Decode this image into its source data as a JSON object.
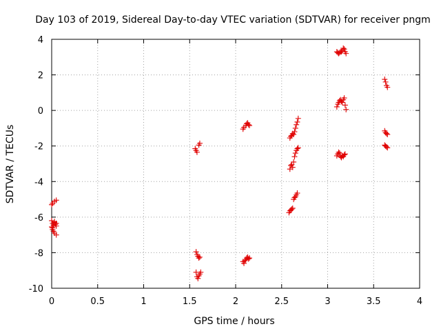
{
  "chart_data": {
    "type": "scatter",
    "title": "Day 103 of 2019, Sidereal Day-to-day VTEC variation (SDTVAR) for receiver pngm",
    "xlabel": "GPS time / hours",
    "ylabel": "SDTVAR / TECUs",
    "xlim": [
      0,
      4
    ],
    "ylim": [
      -10,
      4
    ],
    "grid": true,
    "x_ticks": [
      "0",
      "0.5",
      "1",
      "1.5",
      "2",
      "2.5",
      "3",
      "3.5",
      "4"
    ],
    "y_ticks": [
      "-10",
      "-8",
      "-6",
      "-4",
      "-2",
      "0",
      "2",
      "4"
    ],
    "marker": "plus",
    "marker_color": "#e00000",
    "series": [
      {
        "name": "SDTVAR",
        "points": [
          [
            0.0,
            -5.3
          ],
          [
            0.01,
            -5.22
          ],
          [
            0.03,
            -5.12
          ],
          [
            0.05,
            -5.05
          ],
          [
            0.0,
            -6.2
          ],
          [
            0.01,
            -6.35
          ],
          [
            0.02,
            -6.45
          ],
          [
            0.03,
            -6.3
          ],
          [
            0.04,
            -6.4
          ],
          [
            0.05,
            -6.5
          ],
          [
            0.0,
            -6.55
          ],
          [
            0.01,
            -6.7
          ],
          [
            0.02,
            -6.8
          ],
          [
            0.03,
            -6.9
          ],
          [
            0.05,
            -7.0
          ],
          [
            0.01,
            -6.6
          ],
          [
            0.03,
            -6.25
          ],
          [
            0.05,
            -6.35
          ],
          [
            1.56,
            -2.15
          ],
          [
            1.57,
            -2.25
          ],
          [
            1.58,
            -2.35
          ],
          [
            1.6,
            -1.95
          ],
          [
            1.61,
            -1.85
          ],
          [
            1.57,
            -7.95
          ],
          [
            1.58,
            -8.1
          ],
          [
            1.59,
            -8.2
          ],
          [
            1.6,
            -8.3
          ],
          [
            1.61,
            -8.25
          ],
          [
            1.57,
            -9.1
          ],
          [
            1.58,
            -9.35
          ],
          [
            1.59,
            -9.45
          ],
          [
            1.6,
            -9.3
          ],
          [
            1.61,
            -9.2
          ],
          [
            1.62,
            -9.1
          ],
          [
            2.08,
            -1.05
          ],
          [
            2.09,
            -0.95
          ],
          [
            2.11,
            -0.85
          ],
          [
            2.12,
            -0.75
          ],
          [
            2.13,
            -0.7
          ],
          [
            2.14,
            -0.8
          ],
          [
            2.15,
            -0.85
          ],
          [
            2.08,
            -8.5
          ],
          [
            2.09,
            -8.6
          ],
          [
            2.1,
            -8.45
          ],
          [
            2.11,
            -8.4
          ],
          [
            2.12,
            -8.3
          ],
          [
            2.13,
            -8.25
          ],
          [
            2.14,
            -8.35
          ],
          [
            2.15,
            -8.3
          ],
          [
            2.59,
            -1.55
          ],
          [
            2.6,
            -1.45
          ],
          [
            2.61,
            -1.4
          ],
          [
            2.62,
            -1.3
          ],
          [
            2.63,
            -1.35
          ],
          [
            2.64,
            -1.2
          ],
          [
            2.65,
            -1.0
          ],
          [
            2.66,
            -0.8
          ],
          [
            2.67,
            -0.65
          ],
          [
            2.68,
            -0.45
          ],
          [
            2.59,
            -3.3
          ],
          [
            2.6,
            -3.1
          ],
          [
            2.61,
            -3.05
          ],
          [
            2.62,
            -3.2
          ],
          [
            2.63,
            -2.9
          ],
          [
            2.64,
            -2.6
          ],
          [
            2.65,
            -2.4
          ],
          [
            2.66,
            -2.25
          ],
          [
            2.67,
            -2.15
          ],
          [
            2.68,
            -2.1
          ],
          [
            2.58,
            -5.75
          ],
          [
            2.59,
            -5.65
          ],
          [
            2.6,
            -5.6
          ],
          [
            2.61,
            -5.55
          ],
          [
            2.62,
            -5.5
          ],
          [
            2.63,
            -5.0
          ],
          [
            2.64,
            -4.9
          ],
          [
            2.65,
            -4.85
          ],
          [
            2.66,
            -4.75
          ],
          [
            2.67,
            -4.65
          ],
          [
            3.1,
            3.3
          ],
          [
            3.11,
            3.25
          ],
          [
            3.12,
            3.2
          ],
          [
            3.13,
            3.25
          ],
          [
            3.14,
            3.3
          ],
          [
            3.15,
            3.3
          ],
          [
            3.16,
            3.35
          ],
          [
            3.17,
            3.5
          ],
          [
            3.18,
            3.45
          ],
          [
            3.19,
            3.3
          ],
          [
            3.2,
            3.2
          ],
          [
            3.1,
            0.2
          ],
          [
            3.11,
            0.35
          ],
          [
            3.12,
            0.45
          ],
          [
            3.13,
            0.55
          ],
          [
            3.14,
            0.6
          ],
          [
            3.15,
            0.5
          ],
          [
            3.16,
            0.45
          ],
          [
            3.17,
            0.6
          ],
          [
            3.18,
            0.7
          ],
          [
            3.19,
            0.3
          ],
          [
            3.2,
            0.05
          ],
          [
            3.1,
            -2.55
          ],
          [
            3.11,
            -2.45
          ],
          [
            3.12,
            -2.35
          ],
          [
            3.13,
            -2.4
          ],
          [
            3.14,
            -2.6
          ],
          [
            3.15,
            -2.65
          ],
          [
            3.16,
            -2.55
          ],
          [
            3.17,
            -2.6
          ],
          [
            3.18,
            -2.5
          ],
          [
            3.19,
            -2.45
          ],
          [
            3.62,
            1.75
          ],
          [
            3.63,
            1.6
          ],
          [
            3.64,
            1.4
          ],
          [
            3.65,
            1.3
          ],
          [
            3.62,
            -1.15
          ],
          [
            3.63,
            -1.25
          ],
          [
            3.64,
            -1.3
          ],
          [
            3.65,
            -1.35
          ],
          [
            3.62,
            -1.95
          ],
          [
            3.63,
            -2.0
          ],
          [
            3.64,
            -2.05
          ],
          [
            3.65,
            -2.1
          ]
        ]
      }
    ]
  }
}
